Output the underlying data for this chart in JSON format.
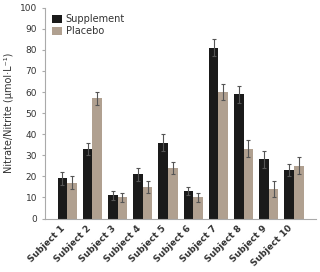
{
  "subjects": [
    "Subject 1",
    "Subject 2",
    "Subject 3",
    "Subject 4",
    "Subject 5",
    "Subject 6",
    "Subject 7",
    "Subject 8",
    "Subject 9",
    "Subject 10"
  ],
  "supplement": [
    19,
    33,
    11,
    21,
    36,
    13,
    81,
    59,
    28,
    23
  ],
  "placebo": [
    17,
    57,
    10,
    15,
    24,
    10,
    60,
    33,
    14,
    25
  ],
  "supplement_err": [
    3,
    3,
    2,
    3,
    4,
    2,
    4,
    4,
    4,
    3
  ],
  "placebo_err": [
    3,
    3,
    2,
    3,
    3,
    2,
    4,
    4,
    4,
    4
  ],
  "supplement_color": "#1a1a1a",
  "placebo_color": "#b0a090",
  "ylabel": "Nitrate/Nitrite (μmol·L⁻¹)",
  "ylim": [
    0,
    100
  ],
  "yticks": [
    0,
    10,
    20,
    30,
    40,
    50,
    60,
    70,
    80,
    90,
    100
  ],
  "background_color": "#ffffff",
  "bar_width": 0.38,
  "legend_supplement": "Supplement",
  "legend_placebo": "Placebo",
  "tick_fontsize": 6.5,
  "label_fontsize": 7,
  "legend_fontsize": 7
}
